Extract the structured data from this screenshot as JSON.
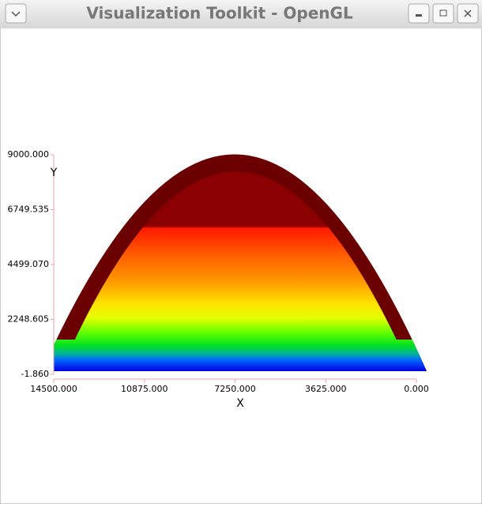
{
  "window": {
    "title": "Visualization Toolkit - OpenGL"
  },
  "chart_data": {
    "type": "surface",
    "xlabel": "X",
    "ylabel": "Y",
    "xlim": [
      14500,
      0
    ],
    "ylim": [
      -1.86,
      9000
    ],
    "xticks": [
      {
        "value": 14500,
        "label": "14500.000"
      },
      {
        "value": 10875,
        "label": "10875.000"
      },
      {
        "value": 7250,
        "label": "7250.000"
      },
      {
        "value": 3625,
        "label": "3625.000"
      },
      {
        "value": 0,
        "label": "0.000"
      }
    ],
    "yticks": [
      {
        "value": -1.86,
        "label": "-1.860"
      },
      {
        "value": 2248.605,
        "label": "2248.605"
      },
      {
        "value": 4499.07,
        "label": "4499.070"
      },
      {
        "value": 6749.535,
        "label": "6749.535"
      },
      {
        "value": 9000,
        "label": "9000.000"
      }
    ]
  }
}
